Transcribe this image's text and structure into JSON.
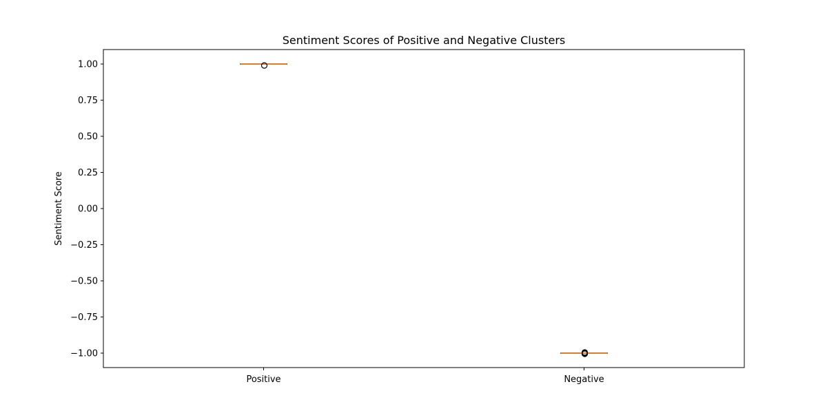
{
  "chart_data": {
    "type": "box",
    "title": "Sentiment Scores of Positive and Negative Clusters",
    "xlabel": "",
    "ylabel": "Sentiment Score",
    "ylim": [
      -1.1,
      1.1
    ],
    "yticks": [
      1.0,
      0.75,
      0.5,
      0.25,
      0.0,
      -0.25,
      -0.5,
      -0.75,
      -1.0
    ],
    "ytick_labels": [
      "1.00",
      "0.75",
      "0.50",
      "0.25",
      "0.00",
      "−0.25",
      "−0.50",
      "−0.75",
      "−1.00"
    ],
    "categories": [
      "Positive",
      "Negative"
    ],
    "boxes": [
      {
        "category": "Positive",
        "whisker_low": 1.0,
        "q1": 1.0,
        "median": 1.0,
        "q3": 1.0,
        "whisker_high": 1.0,
        "outliers": [
          0.99
        ]
      },
      {
        "category": "Negative",
        "whisker_low": -1.0,
        "q1": -1.0,
        "median": -1.0,
        "q3": -1.0,
        "whisker_high": -1.0,
        "outliers": [
          -0.995,
          -1.0,
          -1.005
        ]
      }
    ],
    "grid": false,
    "colors": {
      "median": "#ff7f0e",
      "box": "#000000",
      "outlier": "#000000",
      "frame": "#000000"
    }
  }
}
